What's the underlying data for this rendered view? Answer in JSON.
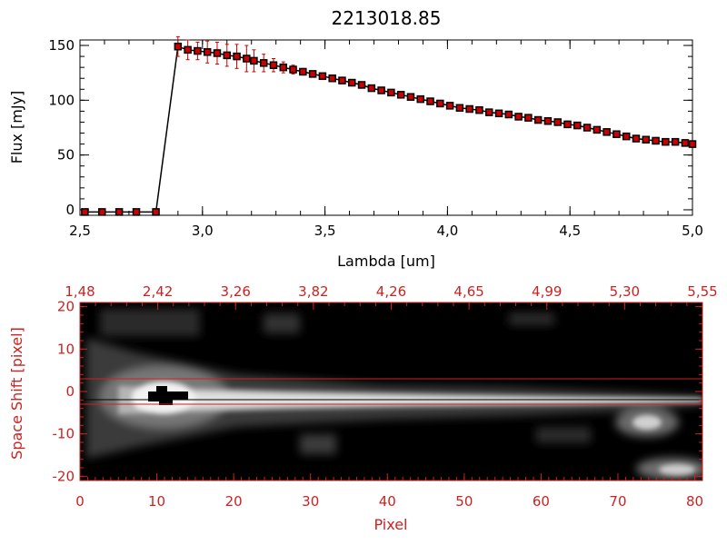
{
  "chart_data": [
    {
      "type": "line",
      "title": "2213018.85",
      "xlabel": "Lambda [um]",
      "ylabel": "Flux [mJy]",
      "xlim": [
        2.5,
        5.0
      ],
      "ylim": [
        -5,
        155
      ],
      "xticks": [
        "2.5",
        "3.0",
        "3.5",
        "4.0",
        "4.5",
        "5.0"
      ],
      "yticks": [
        "0",
        "50",
        "100",
        "150"
      ],
      "series": [
        {
          "x": [
            2.52,
            2.59,
            2.66,
            2.73,
            2.81,
            2.9,
            2.94,
            2.98,
            3.02,
            3.06,
            3.1,
            3.14,
            3.18,
            3.21,
            3.25,
            3.29,
            3.33,
            3.37,
            3.41,
            3.45,
            3.49,
            3.53,
            3.57,
            3.61,
            3.65,
            3.69,
            3.73,
            3.77,
            3.81,
            3.85,
            3.89,
            3.93,
            3.97,
            4.01,
            4.05,
            4.09,
            4.13,
            4.17,
            4.21,
            4.25,
            4.29,
            4.33,
            4.37,
            4.41,
            4.45,
            4.49,
            4.53,
            4.57,
            4.61,
            4.65,
            4.69,
            4.73,
            4.77,
            4.81,
            4.85,
            4.89,
            4.93,
            4.97,
            5.0
          ],
          "values": [
            -2,
            -2,
            -2,
            -2,
            -2,
            149,
            146,
            145,
            144,
            143,
            141,
            140,
            138,
            136,
            134,
            132,
            130,
            128,
            126,
            124,
            122,
            120,
            118,
            116,
            114,
            111,
            109,
            107,
            105,
            103,
            101,
            99,
            97,
            95,
            93,
            92,
            91,
            89,
            88,
            87,
            85,
            84,
            82,
            81,
            80,
            78,
            77,
            75,
            73,
            71,
            69,
            67,
            65,
            64,
            63,
            62,
            62,
            61,
            60
          ],
          "errors": [
            0,
            0,
            0,
            0,
            0,
            9,
            9,
            8,
            10,
            10,
            10,
            11,
            12,
            10,
            8,
            6,
            5,
            4,
            3,
            2,
            2,
            2,
            2,
            2,
            2,
            2,
            2,
            2,
            2,
            2,
            2,
            2,
            2,
            2,
            2,
            2,
            2,
            2,
            2,
            2,
            2,
            2,
            2,
            2,
            2,
            2,
            2,
            2,
            2,
            2,
            2,
            2,
            2,
            2,
            3,
            3,
            3,
            3,
            3
          ]
        }
      ],
      "line_color": "#000000",
      "marker_color": "#cc0000",
      "error_color": "#cc0000",
      "grid": false
    },
    {
      "type": "heatmap",
      "xlabel": "Pixel",
      "ylabel": "Space Shift [pixel]",
      "xlim": [
        0,
        81
      ],
      "ylim": [
        -21,
        21
      ],
      "xticks": [
        "0",
        "10",
        "20",
        "30",
        "40",
        "50",
        "60",
        "70",
        "80"
      ],
      "yticks": [
        "20",
        "10",
        "0",
        "-10",
        "-20"
      ],
      "top_xticks": [
        "1.48",
        "2.42",
        "3.26",
        "3.82",
        "4.26",
        "4.65",
        "4.99",
        "5.30",
        "5.55"
      ],
      "aperture_lines": [
        3,
        -3
      ],
      "axis_color": "#cc2222",
      "colormap": "grayscale"
    }
  ]
}
